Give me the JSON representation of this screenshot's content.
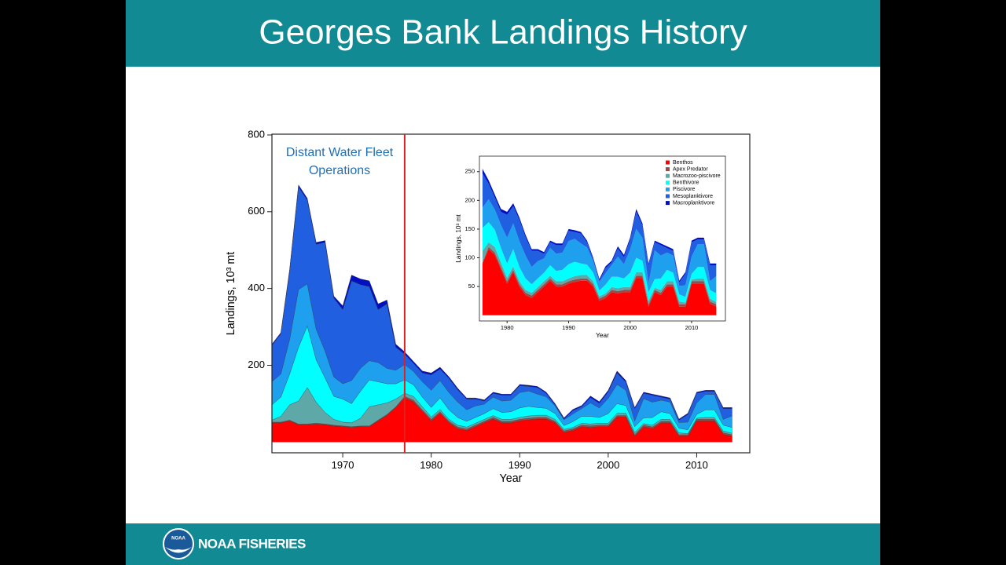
{
  "header": {
    "title": "Georges Bank Landings History"
  },
  "footer": {
    "logo_text": "NOAA",
    "brand": "NOAA FISHERIES"
  },
  "chart_data": [
    {
      "type": "area",
      "stacked": true,
      "xlabel": "Year",
      "ylabel": "Landings, 10³ mt",
      "annotation": {
        "lines": [
          "Distant Water Fleet",
          "Operations"
        ],
        "color": "#1f6fb5"
      },
      "vline": {
        "x": 1977,
        "color": "#e02020"
      },
      "xlim": [
        1962,
        2016
      ],
      "ylim": [
        -28,
        802
      ],
      "xticks": [
        1970,
        1980,
        1990,
        2000,
        2010
      ],
      "yticks": [
        200,
        400,
        600,
        800
      ],
      "x": [
        1962,
        1963,
        1964,
        1965,
        1966,
        1967,
        1968,
        1969,
        1970,
        1971,
        1972,
        1973,
        1974,
        1975,
        1976,
        1977,
        1978,
        1979,
        1980,
        1981,
        1982,
        1983,
        1984,
        1985,
        1986,
        1987,
        1988,
        1989,
        1990,
        1991,
        1992,
        1993,
        1994,
        1995,
        1996,
        1997,
        1998,
        1999,
        2000,
        2001,
        2002,
        2003,
        2004,
        2005,
        2006,
        2007,
        2008,
        2009,
        2010,
        2011,
        2012,
        2013,
        2014
      ],
      "series": [
        {
          "color": "#ff0000",
          "values": [
            50,
            50,
            55,
            45,
            45,
            47,
            45,
            42,
            40,
            38,
            40,
            40,
            55,
            70,
            90,
            115,
            105,
            80,
            55,
            75,
            50,
            35,
            30,
            40,
            50,
            60,
            50,
            50,
            55,
            58,
            60,
            60,
            50,
            25,
            30,
            40,
            38,
            40,
            40,
            65,
            65,
            15,
            40,
            35,
            50,
            50,
            15,
            15,
            55,
            55,
            55,
            20,
            15
          ]
        },
        {
          "color": "#9a4a4a",
          "values": [
            2,
            2,
            2,
            2,
            2,
            2,
            2,
            2,
            2,
            2,
            2,
            2,
            2,
            2,
            2,
            4,
            4,
            4,
            4,
            4,
            4,
            4,
            4,
            4,
            4,
            4,
            4,
            4,
            4,
            4,
            4,
            4,
            4,
            4,
            4,
            4,
            4,
            4,
            4,
            4,
            4,
            4,
            4,
            4,
            4,
            4,
            4,
            4,
            4,
            4,
            4,
            4,
            4
          ]
        },
        {
          "color": "#5fa8a8",
          "values": [
            5,
            15,
            40,
            60,
            95,
            55,
            30,
            15,
            10,
            10,
            20,
            50,
            40,
            30,
            20,
            8,
            10,
            8,
            6,
            6,
            5,
            5,
            5,
            5,
            5,
            5,
            5,
            5,
            5,
            6,
            6,
            6,
            5,
            4,
            4,
            5,
            5,
            5,
            5,
            6,
            6,
            6,
            4,
            5,
            5,
            5,
            5,
            3,
            3,
            5,
            5,
            5,
            4
          ]
        },
        {
          "color": "#00ffff",
          "values": [
            40,
            50,
            80,
            140,
            160,
            110,
            90,
            60,
            60,
            50,
            70,
            70,
            60,
            50,
            40,
            35,
            30,
            25,
            25,
            30,
            25,
            20,
            15,
            15,
            15,
            18,
            18,
            20,
            25,
            25,
            20,
            18,
            15,
            10,
            15,
            18,
            20,
            15,
            25,
            25,
            20,
            15,
            15,
            20,
            20,
            15,
            12,
            10,
            10,
            20,
            20,
            15,
            15
          ]
        },
        {
          "color": "#1ea0ee",
          "values": [
            60,
            60,
            90,
            150,
            110,
            80,
            70,
            50,
            40,
            60,
            60,
            50,
            50,
            40,
            35,
            40,
            35,
            40,
            45,
            45,
            45,
            40,
            30,
            30,
            25,
            30,
            30,
            30,
            40,
            40,
            35,
            30,
            20,
            15,
            20,
            20,
            35,
            25,
            40,
            50,
            40,
            15,
            50,
            40,
            30,
            30,
            15,
            20,
            30,
            40,
            40,
            15,
            30
          ]
        },
        {
          "color": "#1f5fe0",
          "values": [
            95,
            105,
            178,
            268,
            218,
            221,
            283,
            206,
            193,
            260,
            218,
            193,
            138,
            168,
            60,
            27,
            21,
            23,
            40,
            30,
            37,
            32,
            28,
            18,
            8,
            10,
            15,
            13,
            18,
            12,
            17,
            9,
            3,
            2,
            9,
            5,
            14,
            12,
            17,
            30,
            21,
            32,
            14,
            18,
            8,
            8,
            6,
            20,
            25,
            8,
            8,
            28,
            19
          ]
        },
        {
          "color": "#0010c0",
          "values": [
            3,
            3,
            5,
            5,
            5,
            5,
            5,
            5,
            10,
            15,
            15,
            15,
            15,
            10,
            8,
            6,
            5,
            5,
            5,
            5,
            4,
            4,
            3,
            3,
            3,
            3,
            3,
            3,
            3,
            3,
            3,
            3,
            3,
            3,
            3,
            3,
            4,
            4,
            4,
            5,
            4,
            3,
            3,
            3,
            3,
            3,
            3,
            3,
            3,
            3,
            3,
            3,
            3
          ]
        }
      ]
    },
    {
      "type": "area",
      "stacked": true,
      "legend": "upper right",
      "xlabel": "Year",
      "ylabel": "Landings, 10³ mt",
      "xlim": [
        1975.5,
        2015.5
      ],
      "ylim": [
        -10,
        277
      ],
      "xticks": [
        1980,
        1990,
        2000,
        2010
      ],
      "yticks": [
        50,
        100,
        150,
        200,
        250
      ],
      "x": [
        1976,
        1977,
        1978,
        1979,
        1980,
        1981,
        1982,
        1983,
        1984,
        1985,
        1986,
        1987,
        1988,
        1989,
        1990,
        1991,
        1992,
        1993,
        1994,
        1995,
        1996,
        1997,
        1998,
        1999,
        2000,
        2001,
        2002,
        2003,
        2004,
        2005,
        2006,
        2007,
        2008,
        2009,
        2010,
        2011,
        2012,
        2013,
        2014
      ],
      "series": [
        {
          "name": "Benthos",
          "color": "#ff0000",
          "values": [
            90,
            115,
            105,
            80,
            55,
            75,
            50,
            35,
            30,
            40,
            50,
            60,
            50,
            50,
            55,
            58,
            60,
            60,
            50,
            25,
            30,
            40,
            38,
            40,
            40,
            65,
            65,
            15,
            40,
            35,
            50,
            50,
            15,
            15,
            55,
            55,
            55,
            20,
            15
          ]
        },
        {
          "name": "Apex Predator",
          "color": "#9a4a4a",
          "values": [
            2,
            4,
            4,
            4,
            4,
            4,
            4,
            4,
            4,
            4,
            4,
            4,
            4,
            4,
            4,
            4,
            4,
            4,
            4,
            4,
            4,
            4,
            4,
            4,
            4,
            4,
            4,
            4,
            4,
            4,
            4,
            4,
            4,
            4,
            4,
            4,
            4,
            4,
            4
          ]
        },
        {
          "name": "Macrozoo-piscivore",
          "color": "#5fa8a8",
          "values": [
            20,
            8,
            10,
            8,
            6,
            6,
            5,
            5,
            5,
            5,
            5,
            5,
            5,
            5,
            5,
            6,
            6,
            6,
            5,
            4,
            4,
            5,
            5,
            5,
            5,
            6,
            6,
            6,
            4,
            5,
            5,
            5,
            5,
            3,
            3,
            5,
            5,
            5,
            4
          ]
        },
        {
          "name": "Benthivore",
          "color": "#00ffff",
          "values": [
            40,
            35,
            30,
            25,
            25,
            30,
            25,
            20,
            15,
            15,
            15,
            18,
            18,
            20,
            25,
            25,
            20,
            18,
            15,
            10,
            15,
            18,
            20,
            15,
            25,
            25,
            20,
            15,
            15,
            20,
            20,
            15,
            12,
            10,
            10,
            20,
            20,
            15,
            15
          ]
        },
        {
          "name": "Piscivore",
          "color": "#1ea0ee",
          "values": [
            35,
            40,
            35,
            40,
            45,
            45,
            45,
            40,
            30,
            30,
            25,
            30,
            30,
            30,
            40,
            40,
            35,
            30,
            20,
            15,
            20,
            20,
            35,
            25,
            40,
            50,
            40,
            15,
            50,
            40,
            30,
            30,
            15,
            20,
            30,
            40,
            40,
            15,
            30
          ]
        },
        {
          "name": "Mesoplanktivore",
          "color": "#1f5fe0",
          "values": [
            60,
            27,
            21,
            23,
            40,
            30,
            37,
            32,
            28,
            18,
            8,
            10,
            15,
            13,
            18,
            12,
            17,
            9,
            3,
            2,
            9,
            5,
            14,
            12,
            17,
            30,
            21,
            32,
            14,
            18,
            8,
            8,
            6,
            20,
            25,
            8,
            8,
            28,
            19
          ]
        },
        {
          "name": "Macroplanktivore",
          "color": "#0010c0",
          "values": [
            8,
            6,
            5,
            5,
            5,
            5,
            4,
            4,
            3,
            3,
            3,
            3,
            3,
            3,
            3,
            3,
            3,
            3,
            3,
            3,
            3,
            3,
            4,
            4,
            4,
            5,
            4,
            3,
            3,
            3,
            3,
            3,
            3,
            3,
            3,
            3,
            3,
            3,
            3
          ]
        }
      ]
    }
  ]
}
